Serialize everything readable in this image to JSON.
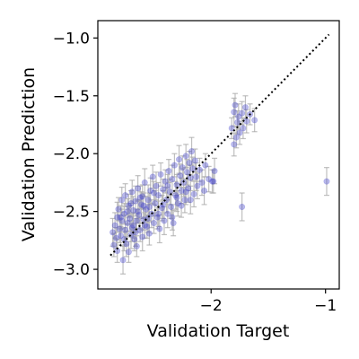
{
  "chart_data": {
    "type": "scatter",
    "title": "",
    "xlabel": "Validation Target",
    "ylabel": "Validation Prediction",
    "xlim": [
      -2.99,
      -0.88
    ],
    "ylim": [
      -3.17,
      -0.85
    ],
    "x_ticks": [
      -2,
      -1
    ],
    "x_tick_labels": [
      "−2",
      "−1"
    ],
    "y_ticks": [
      -3.0,
      -2.5,
      -2.0,
      -1.5,
      -1.0
    ],
    "y_tick_labels": [
      "−3.0",
      "−2.5",
      "−2.0",
      "−1.5",
      "−1.0"
    ],
    "grid": false,
    "legend": "none",
    "point_color": "#3a3acc",
    "error_bar_color": "#aaaaaa",
    "reference_line": {
      "style": "dotted",
      "color": "#000000",
      "from": [
        -2.88,
        -2.88
      ],
      "to": [
        -0.97,
        -0.97
      ]
    },
    "points": [
      {
        "x": -2.86,
        "y": -2.68,
        "err": 0.12
      },
      {
        "x": -2.85,
        "y": -2.79,
        "err": 0.1
      },
      {
        "x": -2.84,
        "y": -2.62,
        "err": 0.11
      },
      {
        "x": -2.83,
        "y": -2.73,
        "err": 0.09
      },
      {
        "x": -2.82,
        "y": -2.55,
        "err": 0.13
      },
      {
        "x": -2.82,
        "y": -2.84,
        "err": 0.1
      },
      {
        "x": -2.81,
        "y": -2.48,
        "err": 0.1
      },
      {
        "x": -2.8,
        "y": -2.65,
        "err": 0.12
      },
      {
        "x": -2.79,
        "y": -2.71,
        "err": 0.08
      },
      {
        "x": -2.78,
        "y": -2.4,
        "err": 0.11
      },
      {
        "x": -2.78,
        "y": -2.58,
        "err": 0.1
      },
      {
        "x": -2.77,
        "y": -2.92,
        "err": 0.12
      },
      {
        "x": -2.76,
        "y": -2.52,
        "err": 0.09
      },
      {
        "x": -2.75,
        "y": -2.66,
        "err": 0.13
      },
      {
        "x": -2.75,
        "y": -2.36,
        "err": 0.1
      },
      {
        "x": -2.74,
        "y": -2.78,
        "err": 0.11
      },
      {
        "x": -2.73,
        "y": -2.6,
        "err": 0.12
      },
      {
        "x": -2.72,
        "y": -2.45,
        "err": 0.1
      },
      {
        "x": -2.72,
        "y": -2.85,
        "err": 0.09
      },
      {
        "x": -2.71,
        "y": -2.56,
        "err": 0.11
      },
      {
        "x": -2.7,
        "y": -2.7,
        "err": 0.12
      },
      {
        "x": -2.69,
        "y": -2.33,
        "err": 0.1
      },
      {
        "x": -2.68,
        "y": -2.62,
        "err": 0.11
      },
      {
        "x": -2.68,
        "y": -2.49,
        "err": 0.12
      },
      {
        "x": -2.67,
        "y": -2.74,
        "err": 0.1
      },
      {
        "x": -2.66,
        "y": -2.41,
        "err": 0.13
      },
      {
        "x": -2.65,
        "y": -2.58,
        "err": 0.1
      },
      {
        "x": -2.65,
        "y": -2.8,
        "err": 0.09
      },
      {
        "x": -2.64,
        "y": -2.3,
        "err": 0.11
      },
      {
        "x": -2.63,
        "y": -2.53,
        "err": 0.12
      },
      {
        "x": -2.62,
        "y": -2.66,
        "err": 0.1
      },
      {
        "x": -2.61,
        "y": -2.44,
        "err": 0.11
      },
      {
        "x": -2.6,
        "y": -2.72,
        "err": 0.12
      },
      {
        "x": -2.6,
        "y": -2.37,
        "err": 0.1
      },
      {
        "x": -2.59,
        "y": -2.57,
        "err": 0.09
      },
      {
        "x": -2.58,
        "y": -2.25,
        "err": 0.12
      },
      {
        "x": -2.57,
        "y": -2.48,
        "err": 0.11
      },
      {
        "x": -2.56,
        "y": -2.63,
        "err": 0.1
      },
      {
        "x": -2.55,
        "y": -2.4,
        "err": 0.13
      },
      {
        "x": -2.54,
        "y": -2.69,
        "err": 0.1
      },
      {
        "x": -2.53,
        "y": -2.32,
        "err": 0.11
      },
      {
        "x": -2.52,
        "y": -2.52,
        "err": 0.12
      },
      {
        "x": -2.51,
        "y": -2.2,
        "err": 0.1
      },
      {
        "x": -2.5,
        "y": -2.6,
        "err": 0.09
      },
      {
        "x": -2.49,
        "y": -2.43,
        "err": 0.11
      },
      {
        "x": -2.48,
        "y": -2.28,
        "err": 0.12
      },
      {
        "x": -2.47,
        "y": -2.55,
        "err": 0.1
      },
      {
        "x": -2.46,
        "y": -2.36,
        "err": 0.11
      },
      {
        "x": -2.45,
        "y": -2.65,
        "err": 0.12
      },
      {
        "x": -2.44,
        "y": -2.18,
        "err": 0.1
      },
      {
        "x": -2.43,
        "y": -2.47,
        "err": 0.11
      },
      {
        "x": -2.42,
        "y": -2.31,
        "err": 0.09
      },
      {
        "x": -2.41,
        "y": -2.58,
        "err": 0.12
      },
      {
        "x": -2.4,
        "y": -2.24,
        "err": 0.1
      },
      {
        "x": -2.39,
        "y": -2.4,
        "err": 0.11
      },
      {
        "x": -2.38,
        "y": -2.52,
        "err": 0.12
      },
      {
        "x": -2.37,
        "y": -2.15,
        "err": 0.1
      },
      {
        "x": -2.36,
        "y": -2.33,
        "err": 0.11
      },
      {
        "x": -2.35,
        "y": -2.46,
        "err": 0.1
      },
      {
        "x": -2.34,
        "y": -2.22,
        "err": 0.12
      },
      {
        "x": -2.33,
        "y": -2.6,
        "err": 0.11
      },
      {
        "x": -2.32,
        "y": -2.1,
        "err": 0.1
      },
      {
        "x": -2.31,
        "y": -2.36,
        "err": 0.12
      },
      {
        "x": -2.3,
        "y": -2.27,
        "err": 0.09
      },
      {
        "x": -2.29,
        "y": -2.43,
        "err": 0.11
      },
      {
        "x": -2.28,
        "y": -2.05,
        "err": 0.12
      },
      {
        "x": -2.27,
        "y": -2.19,
        "err": 0.1
      },
      {
        "x": -2.26,
        "y": -2.32,
        "err": 0.11
      },
      {
        "x": -2.25,
        "y": -2.12,
        "err": 0.1
      },
      {
        "x": -2.24,
        "y": -2.25,
        "err": 0.12
      },
      {
        "x": -2.23,
        "y": -2.4,
        "err": 0.11
      },
      {
        "x": -2.22,
        "y": -2.02,
        "err": 0.1
      },
      {
        "x": -2.21,
        "y": -2.16,
        "err": 0.11
      },
      {
        "x": -2.2,
        "y": -2.3,
        "err": 0.12
      },
      {
        "x": -2.19,
        "y": -2.08,
        "err": 0.1
      },
      {
        "x": -2.18,
        "y": -2.21,
        "err": 0.11
      },
      {
        "x": -2.17,
        "y": -1.98,
        "err": 0.12
      },
      {
        "x": -2.16,
        "y": -2.13,
        "err": 0.1
      },
      {
        "x": -2.15,
        "y": -2.35,
        "err": 0.11
      },
      {
        "x": -2.14,
        "y": -2.06,
        "err": 0.1
      },
      {
        "x": -2.13,
        "y": -2.2,
        "err": 0.12
      },
      {
        "x": -2.12,
        "y": -2.28,
        "err": 0.11
      },
      {
        "x": -2.1,
        "y": -2.14,
        "err": 0.1
      },
      {
        "x": -2.08,
        "y": -2.25,
        "err": 0.11
      },
      {
        "x": -2.06,
        "y": -2.32,
        "err": 0.12
      },
      {
        "x": -2.05,
        "y": -2.1,
        "err": 0.1
      },
      {
        "x": -2.02,
        "y": -2.22,
        "err": 0.11
      },
      {
        "x": -1.99,
        "y": -2.24,
        "err": 0.1
      },
      {
        "x": -1.97,
        "y": -2.15,
        "err": 0.11
      },
      {
        "x": -2.79,
        "y": -2.55,
        "err": 0.1
      },
      {
        "x": -2.7,
        "y": -2.43,
        "err": 0.11
      },
      {
        "x": -2.66,
        "y": -2.68,
        "err": 0.12
      },
      {
        "x": -2.62,
        "y": -2.38,
        "err": 0.1
      },
      {
        "x": -2.58,
        "y": -2.62,
        "err": 0.11
      },
      {
        "x": -2.54,
        "y": -2.46,
        "err": 0.12
      },
      {
        "x": -2.5,
        "y": -2.34,
        "err": 0.1
      },
      {
        "x": -2.46,
        "y": -2.52,
        "err": 0.11
      },
      {
        "x": -2.42,
        "y": -2.44,
        "err": 0.12
      },
      {
        "x": -2.38,
        "y": -2.28,
        "err": 0.1
      },
      {
        "x": -2.34,
        "y": -2.55,
        "err": 0.11
      },
      {
        "x": -2.3,
        "y": -2.38,
        "err": 0.12
      },
      {
        "x": -2.26,
        "y": -2.45,
        "err": 0.1
      },
      {
        "x": -2.22,
        "y": -2.33,
        "err": 0.11
      },
      {
        "x": -2.18,
        "y": -2.4,
        "err": 0.12
      },
      {
        "x": -2.76,
        "y": -2.74,
        "err": 0.1
      },
      {
        "x": -2.73,
        "y": -2.5,
        "err": 0.11
      },
      {
        "x": -2.69,
        "y": -2.64,
        "err": 0.12
      },
      {
        "x": -2.64,
        "y": -2.5,
        "err": 0.1
      },
      {
        "x": -2.59,
        "y": -2.45,
        "err": 0.11
      },
      {
        "x": -2.55,
        "y": -2.56,
        "err": 0.12
      },
      {
        "x": -1.82,
        "y": -1.78,
        "err": 0.09
      },
      {
        "x": -1.8,
        "y": -1.92,
        "err": 0.1
      },
      {
        "x": -1.79,
        "y": -1.58,
        "err": 0.1
      },
      {
        "x": -1.78,
        "y": -1.86,
        "err": 0.09
      },
      {
        "x": -1.77,
        "y": -1.73,
        "err": 0.1
      },
      {
        "x": -1.76,
        "y": -1.68,
        "err": 0.11
      },
      {
        "x": -1.75,
        "y": -1.82,
        "err": 0.1
      },
      {
        "x": -1.73,
        "y": -1.65,
        "err": 0.1
      },
      {
        "x": -1.72,
        "y": -1.78,
        "err": 0.09
      },
      {
        "x": -1.7,
        "y": -1.6,
        "err": 0.1
      },
      {
        "x": -1.69,
        "y": -1.72,
        "err": 0.1
      },
      {
        "x": -1.66,
        "y": -1.66,
        "err": 0.09
      },
      {
        "x": -1.62,
        "y": -1.71,
        "err": 0.1
      },
      {
        "x": -1.8,
        "y": -1.64,
        "err": 0.12
      },
      {
        "x": -1.98,
        "y": -2.24,
        "err": 0.1
      },
      {
        "x": -1.73,
        "y": -2.46,
        "err": 0.12
      },
      {
        "x": -0.99,
        "y": -2.24,
        "err": 0.12
      }
    ]
  }
}
